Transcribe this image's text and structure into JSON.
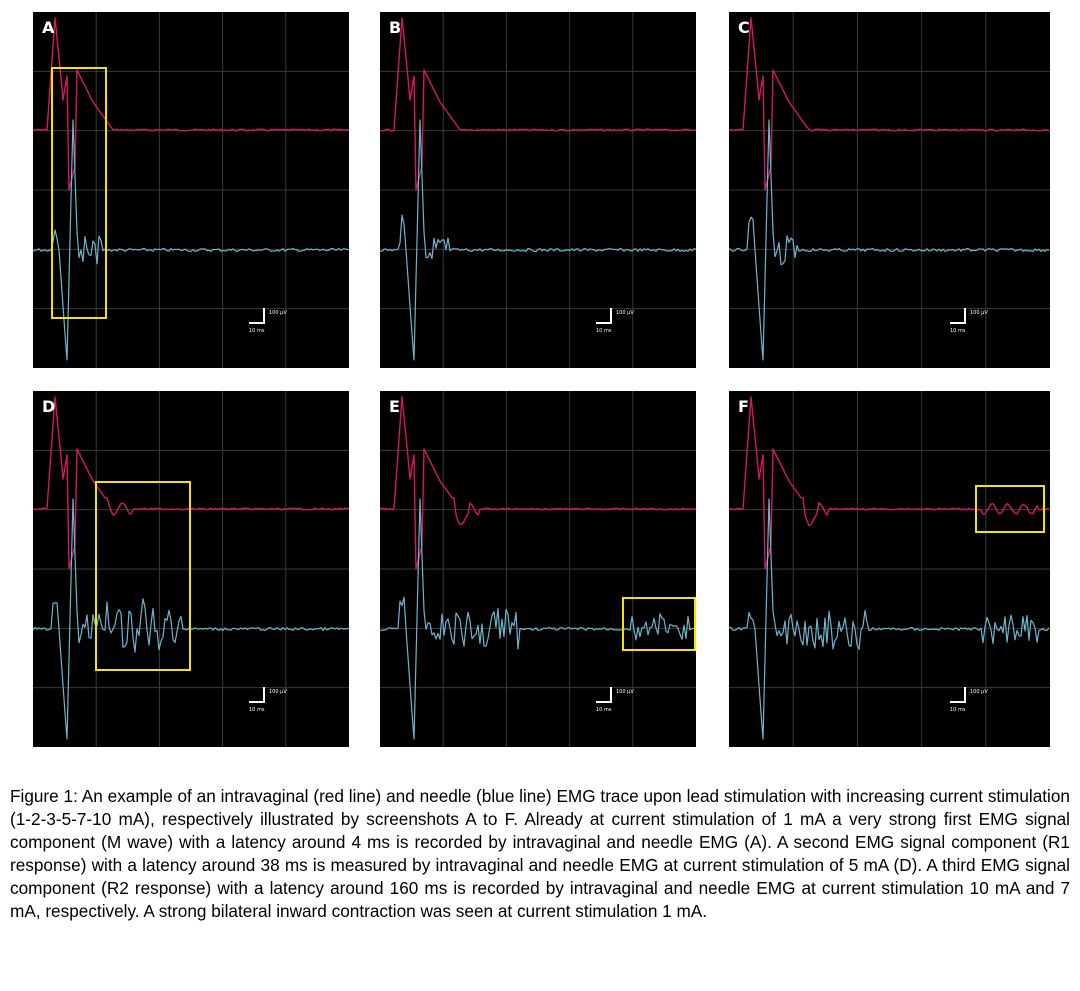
{
  "figure": {
    "panels": [
      {
        "id": "A",
        "letter": "A",
        "scale_voltage": "100 µV",
        "scale_time": "10 ms"
      },
      {
        "id": "B",
        "letter": "B",
        "scale_voltage": "100 µV",
        "scale_time": "10 ms"
      },
      {
        "id": "C",
        "letter": "C",
        "scale_voltage": "100 µV",
        "scale_time": "10 ms"
      },
      {
        "id": "D",
        "letter": "D",
        "scale_voltage": "100 µV",
        "scale_time": "10 ms"
      },
      {
        "id": "E",
        "letter": "E",
        "scale_voltage": "100 µV",
        "scale_time": "10 ms"
      },
      {
        "id": "F",
        "letter": "F",
        "scale_voltage": "100 µV",
        "scale_time": "10 ms"
      }
    ],
    "trace_colors": {
      "intravaginal": "#d2185f",
      "needle": "#6fb4cc",
      "highlight": "#f5e400",
      "grid": "#3a3a3a"
    },
    "caption": "Figure 1: An example of an intravaginal (red line) and needle (blue line) EMG trace upon lead stimulation with increasing current stimulation (1-2-3-5-7-10 mA), respectively illustrated by screenshots A to F. Already at current stimulation of 1 mA a very strong first EMG signal component (M wave) with a latency around 4 ms is recorded by intravaginal and needle EMG (A). A second EMG signal component (R1 response) with a latency around 38 ms is measured by intravaginal and needle EMG at current stimulation of 5 mA (D). A third EMG signal component (R2 response) with a latency around 160 ms is recorded by intravaginal and needle EMG at current stimulation 10 mA and 7 mA, respectively. A strong bilateral inward contraction was seen at current stimulation 1 mA."
  }
}
